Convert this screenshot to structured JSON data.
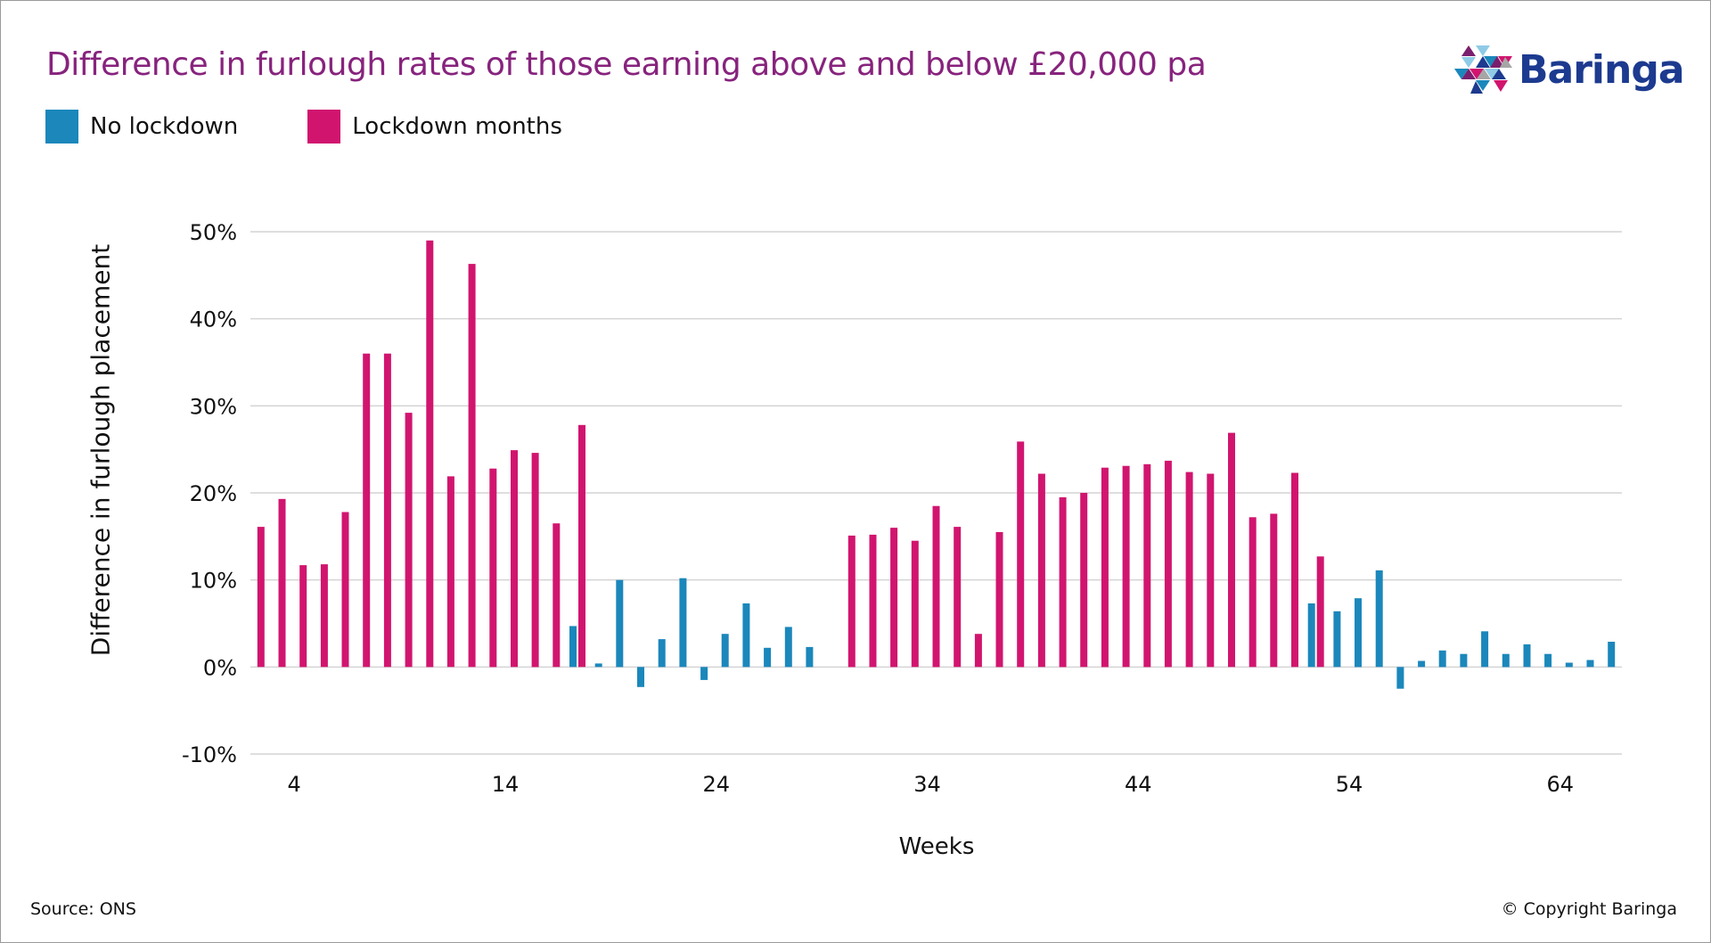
{
  "title": "Difference in furlough rates of those earning above and below £20,000 pa",
  "logo": {
    "text": "Baringa",
    "icon": "triangle-mosaic-icon"
  },
  "legend": [
    {
      "label": "No lockdown",
      "color": "#1b87bb"
    },
    {
      "label": "Lockdown months",
      "color": "#d1156f"
    }
  ],
  "footer": {
    "source": "Source: ONS",
    "copyright": "© Copyright Baringa"
  },
  "chart_data": {
    "type": "bar",
    "title": "Difference in furlough rates of those earning above and below £20,000 pa",
    "xlabel": "Weeks",
    "ylabel": "Difference in furlough placement",
    "ylim": [
      -10,
      50
    ],
    "yticks": [
      {
        "value": 50,
        "label": "50%"
      },
      {
        "value": 40,
        "label": "40%"
      },
      {
        "value": 30,
        "label": "30%"
      },
      {
        "value": 20,
        "label": "20%"
      },
      {
        "value": 10,
        "label": "10%"
      },
      {
        "value": 0,
        "label": "0%"
      },
      {
        "value": -10,
        "label": "-10%"
      }
    ],
    "xticks": [
      {
        "value": 4,
        "label": "4"
      },
      {
        "value": 14,
        "label": "14"
      },
      {
        "value": 24,
        "label": "24"
      },
      {
        "value": 34,
        "label": "34"
      },
      {
        "value": 44,
        "label": "44"
      },
      {
        "value": 54,
        "label": "54"
      },
      {
        "value": 64,
        "label": "64"
      }
    ],
    "x_range": [
      2,
      66
    ],
    "grid": true,
    "legend_position": "top-left",
    "series": [
      {
        "name": "No lockdown",
        "color": "#1b87bb",
        "points": [
          [
            17,
            4.7
          ],
          [
            18,
            0.4
          ],
          [
            19,
            10.0
          ],
          [
            20,
            -2.3
          ],
          [
            21,
            3.2
          ],
          [
            22,
            10.2
          ],
          [
            23,
            -1.5
          ],
          [
            24,
            3.8
          ],
          [
            25,
            7.3
          ],
          [
            26,
            2.2
          ],
          [
            27,
            4.6
          ],
          [
            28,
            2.3
          ],
          [
            52,
            7.3
          ],
          [
            53,
            6.4
          ],
          [
            54,
            7.9
          ],
          [
            55,
            11.1
          ],
          [
            56,
            -2.5
          ],
          [
            57,
            0.7
          ],
          [
            58,
            1.9
          ],
          [
            59,
            1.5
          ],
          [
            60,
            4.1
          ],
          [
            61,
            1.5
          ],
          [
            62,
            2.6
          ],
          [
            63,
            1.5
          ],
          [
            64,
            0.5
          ],
          [
            65,
            0.8
          ],
          [
            66,
            2.9
          ]
        ]
      },
      {
        "name": "Lockdown months",
        "color": "#d1156f",
        "points": [
          [
            2,
            16.1
          ],
          [
            3,
            19.3
          ],
          [
            4,
            11.7
          ],
          [
            5,
            11.8
          ],
          [
            6,
            17.8
          ],
          [
            7,
            36.0
          ],
          [
            8,
            36.0
          ],
          [
            9,
            29.2
          ],
          [
            10,
            49.0
          ],
          [
            11,
            21.9
          ],
          [
            12,
            46.3
          ],
          [
            13,
            22.8
          ],
          [
            14,
            24.9
          ],
          [
            15,
            24.6
          ],
          [
            16,
            16.5
          ],
          [
            17,
            27.8
          ],
          [
            30,
            15.1
          ],
          [
            31,
            15.2
          ],
          [
            32,
            16.0
          ],
          [
            33,
            14.5
          ],
          [
            34,
            18.5
          ],
          [
            35,
            16.1
          ],
          [
            36,
            3.8
          ],
          [
            37,
            15.5
          ],
          [
            38,
            25.9
          ],
          [
            39,
            22.2
          ],
          [
            40,
            19.5
          ],
          [
            41,
            20.0
          ],
          [
            42,
            22.9
          ],
          [
            43,
            23.1
          ],
          [
            44,
            23.3
          ],
          [
            45,
            23.7
          ],
          [
            46,
            22.4
          ],
          [
            47,
            22.2
          ],
          [
            48,
            26.9
          ],
          [
            49,
            17.2
          ],
          [
            50,
            17.6
          ],
          [
            51,
            22.3
          ],
          [
            52,
            12.7
          ]
        ]
      }
    ]
  }
}
